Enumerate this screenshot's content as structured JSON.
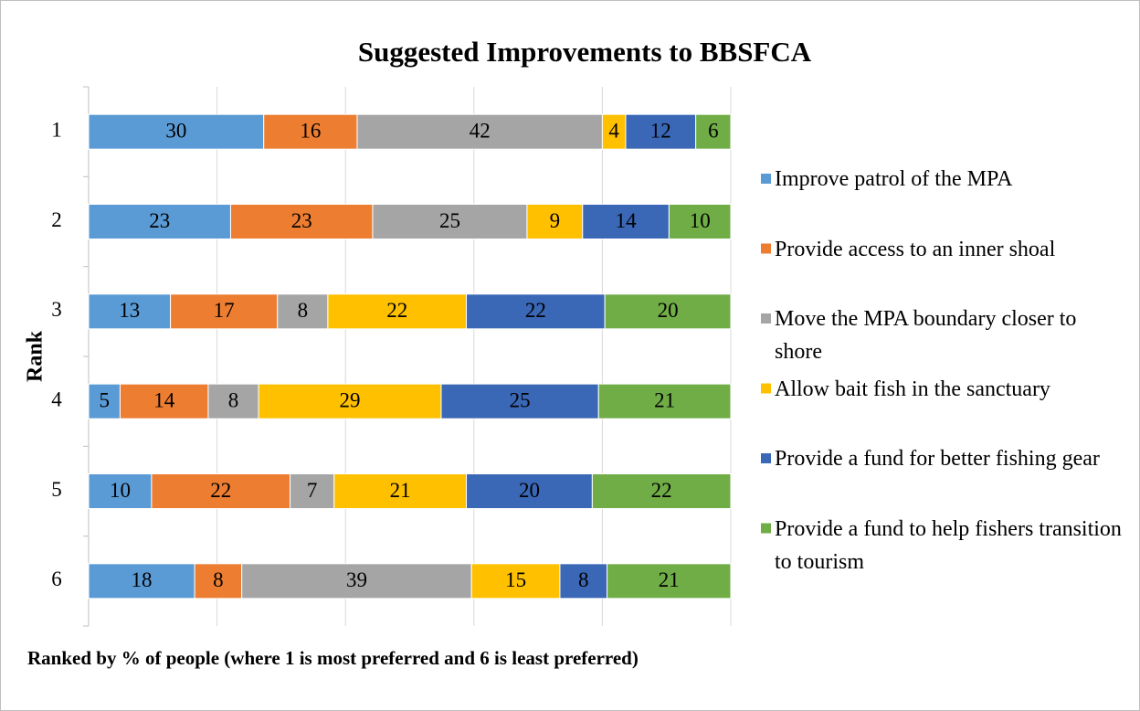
{
  "chart_data": {
    "type": "bar",
    "orientation": "horizontal",
    "stacked": "percent",
    "title": "Suggested Improvements  to BBSFCA",
    "y_axis_label": "Rank",
    "x_axis_label": "Ranked by % of people (where 1 is  most preferred and 6 is least preferred)",
    "categories": [
      "1",
      "2",
      "3",
      "4",
      "5",
      "6"
    ],
    "xlim": [
      0,
      100
    ],
    "xticks": [
      0,
      20,
      40,
      60,
      80,
      100
    ],
    "grid": true,
    "legend": "right",
    "series": [
      {
        "name": "Improve patrol of the MPA",
        "color": "#5b9bd5",
        "values": [
          30,
          23,
          13,
          5,
          10,
          18
        ]
      },
      {
        "name": "Provide access to an inner shoal",
        "color": "#ed7d31",
        "values": [
          16,
          23,
          17,
          14,
          22,
          8
        ]
      },
      {
        "name": "Move the MPA boundary closer to shore",
        "color": "#a5a5a5",
        "values": [
          42,
          25,
          8,
          8,
          7,
          39
        ]
      },
      {
        "name": "Allow bait fish in the sanctuary",
        "color": "#ffc000",
        "values": [
          4,
          9,
          22,
          29,
          21,
          15
        ]
      },
      {
        "name": "Provide a fund for better fishing gear",
        "color": "#3a67b6",
        "values": [
          12,
          14,
          22,
          25,
          20,
          8
        ]
      },
      {
        "name": "Provide a fund to help fishers transition to tourism",
        "color": "#70ad47",
        "values": [
          6,
          10,
          20,
          21,
          22,
          21
        ]
      }
    ]
  }
}
